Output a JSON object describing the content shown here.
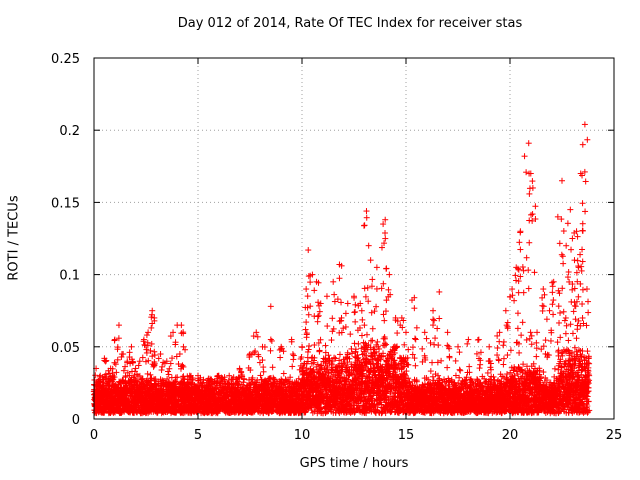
{
  "chart_data": {
    "type": "scatter",
    "title": "Day 012 of 2014, Rate Of TEC Index for receiver stas",
    "xlabel": "GPS time / hours",
    "ylabel": "ROTI / TECUs",
    "xlim": [
      0,
      25
    ],
    "ylim": [
      0,
      0.25
    ],
    "xticks": [
      0,
      5,
      10,
      15,
      20,
      25
    ],
    "xtick_labels": [
      "0",
      "5",
      "10",
      "15",
      "20",
      "25"
    ],
    "yticks": [
      0,
      0.05,
      0.1,
      0.15,
      0.2,
      0.25
    ],
    "ytick_labels": [
      "0",
      "0.05",
      "0.1",
      "0.15",
      "0.2",
      "0.25"
    ],
    "grid": true,
    "marker": "+",
    "color": "#ff0000",
    "x_data_range": [
      0,
      23.8
    ],
    "series": [
      {
        "name": "ROTI",
        "x": [
          0.1,
          0.3,
          0.5,
          0.8,
          1.0,
          1.2,
          1.4,
          1.6,
          1.8,
          2.0,
          2.2,
          2.4,
          2.6,
          2.8,
          2.9,
          3.2,
          3.5,
          3.8,
          4.0,
          4.2,
          4.3,
          4.6,
          5.0,
          5.5,
          6.0,
          6.5,
          7.0,
          7.5,
          7.8,
          8.1,
          8.5,
          9.0,
          9.5,
          10.0,
          10.2,
          10.3,
          10.5,
          10.7,
          10.9,
          11.2,
          11.5,
          11.8,
          11.9,
          12.2,
          12.5,
          12.8,
          13.0,
          13.1,
          13.3,
          13.6,
          13.9,
          14.0,
          14.2,
          14.5,
          14.8,
          15.0,
          15.4,
          15.9,
          16.3,
          16.6,
          17.0,
          17.5,
          18.0,
          18.5,
          19.0,
          19.5,
          19.8,
          20.1,
          20.3,
          20.5,
          20.7,
          20.9,
          21.0,
          21.1,
          21.3,
          21.6,
          21.9,
          22.1,
          22.3,
          22.5,
          22.7,
          22.9,
          23.0,
          23.1,
          23.2,
          23.3,
          23.4,
          23.5,
          23.6,
          23.7
        ],
        "y": [
          0.035,
          0.03,
          0.042,
          0.035,
          0.055,
          0.065,
          0.045,
          0.04,
          0.05,
          0.035,
          0.04,
          0.055,
          0.06,
          0.075,
          0.07,
          0.045,
          0.04,
          0.06,
          0.065,
          0.065,
          0.05,
          0.03,
          0.03,
          0.028,
          0.03,
          0.03,
          0.035,
          0.045,
          0.06,
          0.05,
          0.078,
          0.05,
          0.055,
          0.05,
          0.09,
          0.117,
          0.1,
          0.095,
          0.08,
          0.085,
          0.095,
          0.107,
          0.07,
          0.08,
          0.085,
          0.08,
          0.065,
          0.144,
          0.11,
          0.105,
          0.135,
          0.138,
          0.1,
          0.07,
          0.07,
          0.06,
          0.084,
          0.06,
          0.075,
          0.088,
          0.06,
          0.05,
          0.055,
          0.055,
          0.05,
          0.06,
          0.075,
          0.09,
          0.105,
          0.13,
          0.182,
          0.191,
          0.17,
          0.16,
          0.06,
          0.09,
          0.075,
          0.095,
          0.14,
          0.165,
          0.12,
          0.145,
          0.125,
          0.11,
          0.13,
          0.105,
          0.17,
          0.19,
          0.204,
          0.09
        ]
      }
    ]
  }
}
